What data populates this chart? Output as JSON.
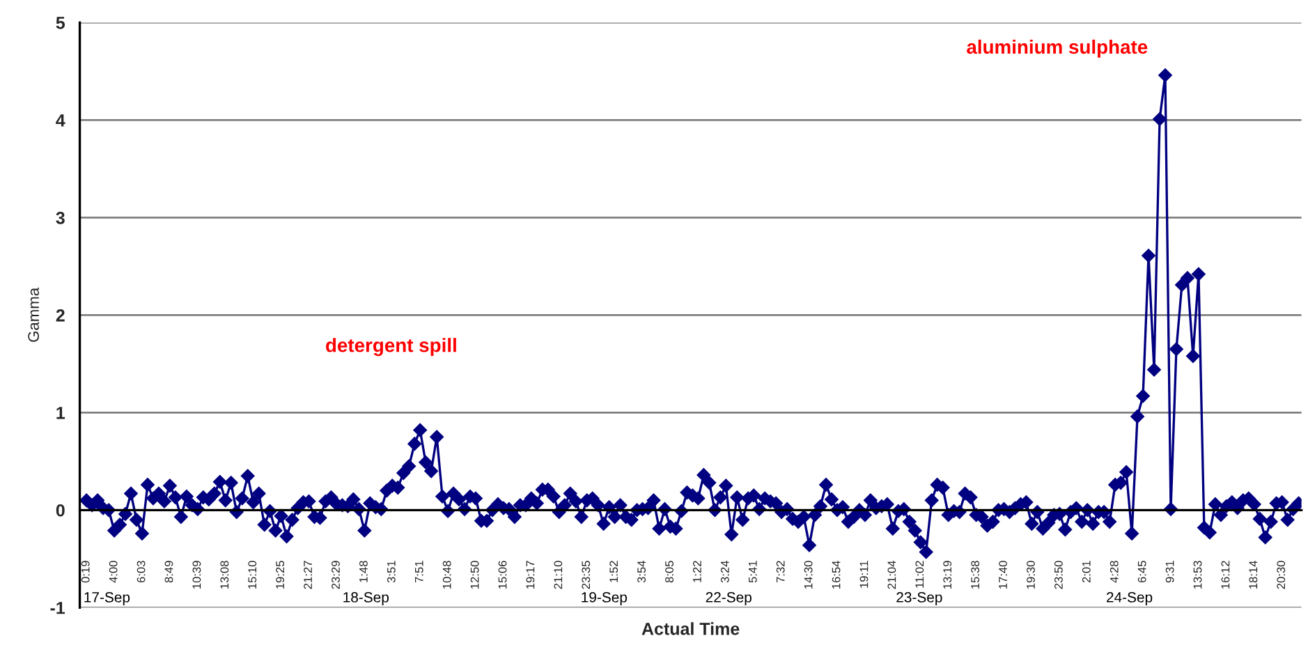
{
  "chart_data": {
    "type": "line",
    "xlabel": "Actual Time",
    "ylabel": "Gamma",
    "categories": [
      "0:19",
      null,
      null,
      null,
      null,
      "4:00",
      null,
      null,
      null,
      null,
      "6:03",
      null,
      null,
      null,
      null,
      "8:49",
      null,
      null,
      null,
      null,
      "10:39",
      null,
      null,
      null,
      null,
      "13:08",
      null,
      null,
      null,
      null,
      "15:10",
      null,
      null,
      null,
      null,
      "19:25",
      null,
      null,
      null,
      null,
      "21:27",
      null,
      null,
      null,
      null,
      "23:29",
      null,
      null,
      null,
      null,
      "1:48",
      null,
      null,
      null,
      null,
      "3:51",
      null,
      null,
      null,
      null,
      "7:51",
      null,
      null,
      null,
      null,
      "10:48",
      null,
      null,
      null,
      null,
      "12:50",
      null,
      null,
      null,
      null,
      "15:06",
      null,
      null,
      null,
      null,
      "19:17",
      null,
      null,
      null,
      null,
      "21:10",
      null,
      null,
      null,
      null,
      "23:35",
      null,
      null,
      null,
      null,
      "1:52",
      null,
      null,
      null,
      null,
      "3:54",
      null,
      null,
      null,
      null,
      "8:05",
      null,
      null,
      null,
      null,
      "1:22",
      null,
      null,
      null,
      null,
      "3:24",
      null,
      null,
      null,
      null,
      "5:41",
      null,
      null,
      null,
      null,
      "7:32",
      null,
      null,
      null,
      null,
      "14:30",
      null,
      null,
      null,
      null,
      "16:54",
      null,
      null,
      null,
      null,
      "19:11",
      null,
      null,
      null,
      null,
      "21:04",
      null,
      null,
      null,
      null,
      "11:02",
      null,
      null,
      null,
      null,
      "13:19",
      null,
      null,
      null,
      null,
      "15:38",
      null,
      null,
      null,
      null,
      "17:40",
      null,
      null,
      null,
      null,
      "19:30",
      null,
      null,
      null,
      null,
      "23:50",
      null,
      null,
      null,
      null,
      "2:01",
      null,
      null,
      null,
      null,
      "4:28",
      null,
      null,
      null,
      null,
      "6:45",
      null,
      null,
      null,
      null,
      "9:31",
      null,
      null,
      null,
      null,
      "13:53",
      null,
      null,
      null,
      null,
      "16:12",
      null,
      null,
      null,
      null,
      "18:14",
      null,
      null,
      null,
      null,
      "20:30",
      null,
      null,
      null
    ],
    "series": [
      {
        "color": "#000080",
        "values": [
          0.1,
          0.05,
          0.1,
          0.02,
          0.0,
          -0.21,
          -0.15,
          -0.04,
          0.17,
          -0.1,
          -0.24,
          0.26,
          0.12,
          0.17,
          0.09,
          0.25,
          0.13,
          -0.07,
          0.14,
          0.05,
          0.01,
          0.13,
          0.11,
          0.17,
          0.29,
          0.1,
          0.28,
          -0.02,
          0.12,
          0.35,
          0.08,
          0.17,
          -0.15,
          -0.01,
          -0.21,
          -0.06,
          -0.27,
          -0.1,
          0.02,
          0.08,
          0.09,
          -0.07,
          -0.08,
          0.09,
          0.13,
          0.06,
          0.05,
          0.04,
          0.11,
          0.01,
          -0.21,
          0.07,
          0.03,
          0.01,
          0.2,
          0.25,
          0.23,
          0.38,
          0.45,
          0.68,
          0.82,
          0.49,
          0.4,
          0.75,
          0.14,
          -0.01,
          0.17,
          0.11,
          0.01,
          0.14,
          0.12,
          -0.11,
          -0.11,
          0.0,
          0.06,
          0.02,
          0.01,
          -0.07,
          0.05,
          0.05,
          0.12,
          0.07,
          0.21,
          0.21,
          0.14,
          -0.02,
          0.05,
          0.17,
          0.09,
          -0.07,
          0.1,
          0.12,
          0.05,
          -0.14,
          0.03,
          -0.07,
          0.05,
          -0.07,
          -0.1,
          0.0,
          0.01,
          0.02,
          0.1,
          -0.19,
          0.01,
          -0.17,
          -0.19,
          -0.01,
          0.18,
          0.15,
          0.12,
          0.36,
          0.28,
          0.0,
          0.13,
          0.25,
          -0.25,
          0.13,
          -0.1,
          0.12,
          0.15,
          0.01,
          0.12,
          0.09,
          0.07,
          -0.02,
          0.01,
          -0.09,
          -0.12,
          -0.07,
          -0.36,
          -0.05,
          0.04,
          0.26,
          0.11,
          0.0,
          0.03,
          -0.12,
          -0.07,
          0.0,
          -0.05,
          0.1,
          0.02,
          0.04,
          0.06,
          -0.19,
          -0.01,
          0.01,
          -0.12,
          -0.21,
          -0.33,
          -0.43,
          0.1,
          0.26,
          0.23,
          -0.05,
          -0.01,
          -0.02,
          0.17,
          0.13,
          -0.05,
          -0.07,
          -0.16,
          -0.12,
          0.0,
          0.01,
          -0.02,
          0.02,
          0.06,
          0.08,
          -0.14,
          -0.02,
          -0.19,
          -0.13,
          -0.05,
          -0.04,
          -0.2,
          -0.02,
          0.02,
          -0.12,
          0.0,
          -0.14,
          -0.02,
          -0.02,
          -0.12,
          0.26,
          0.28,
          0.39,
          -0.24,
          0.96,
          1.17,
          2.61,
          1.44,
          4.01,
          4.46,
          0.01,
          1.65,
          2.31,
          2.38,
          1.58,
          2.42,
          -0.18,
          -0.23,
          0.06,
          -0.05,
          0.04,
          0.08,
          0.02,
          0.1,
          0.12,
          0.06,
          -0.09,
          -0.28,
          -0.12,
          0.07,
          0.08,
          -0.1,
          0.01,
          0.07
        ]
      }
    ],
    "ylim": [
      -1,
      5
    ],
    "yticks": [
      -1,
      0,
      1,
      2,
      3,
      4,
      5
    ],
    "grid": "y",
    "marker": "diamond",
    "line_style": "solid",
    "annotations": [
      "detergent spill",
      "aluminium sulphate",
      "17-Sep",
      "18-Sep",
      "19-Sep",
      "22-Sep",
      "23-Sep",
      "24-Sep"
    ]
  }
}
